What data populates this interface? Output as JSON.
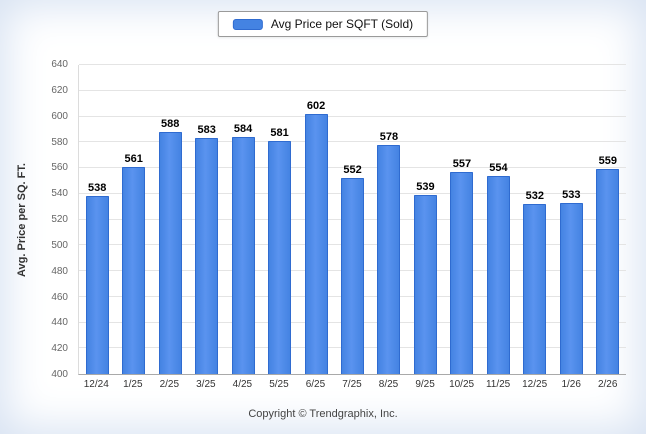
{
  "legend": {
    "label": "Avg Price per SQFT (Sold)",
    "swatch_color": "#4483e2"
  },
  "footer": {
    "copyright": "Copyright © Trendgraphix, Inc."
  },
  "chart_data": {
    "type": "bar",
    "title": "",
    "legend_entries": [
      "Avg Price per SQFT (Sold)"
    ],
    "legend_position": "top",
    "categories": [
      "12/24",
      "1/25",
      "2/25",
      "3/25",
      "4/25",
      "5/25",
      "6/25",
      "7/25",
      "8/25",
      "9/25",
      "10/25",
      "11/25",
      "12/25",
      "1/26",
      "2/26"
    ],
    "values": [
      538,
      561,
      588,
      583,
      584,
      581,
      602,
      552,
      578,
      539,
      557,
      554,
      532,
      533,
      559
    ],
    "xlabel": "",
    "ylabel": "Avg. Price per SQ. FT.",
    "ylim": [
      400,
      640
    ],
    "ytick_step": 20,
    "grid": "horizontal",
    "bar_color": "#4483e2"
  }
}
